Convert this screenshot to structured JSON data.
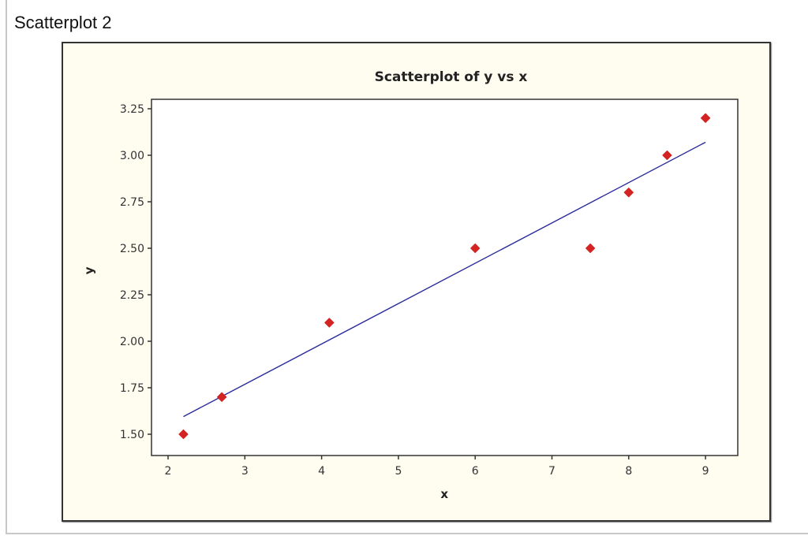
{
  "page": {
    "title": "Scatterplot 2"
  },
  "colors": {
    "frame_bg": "#fffcf0",
    "plot_bg": "#ffffff",
    "marker": "#d42323",
    "fit_line": "#2b2b9c",
    "axis": "#333333"
  },
  "chart_data": {
    "type": "scatter",
    "title": "Scatterplot of y vs x",
    "xlabel": "x",
    "ylabel": "y",
    "xlim": [
      1.8,
      9.4
    ],
    "ylim": [
      1.4,
      3.28
    ],
    "x_ticks": [
      2,
      3,
      4,
      5,
      6,
      7,
      8,
      9
    ],
    "y_ticks": [
      1.5,
      1.75,
      2.0,
      2.25,
      2.5,
      2.75,
      3.0,
      3.25
    ],
    "y_tick_labels": [
      "1.50",
      "1.75",
      "2.00",
      "2.25",
      "2.50",
      "2.75",
      "3.00",
      "3.25"
    ],
    "x_tick_labels": [
      "2",
      "3",
      "4",
      "5",
      "6",
      "7",
      "8",
      "9"
    ],
    "grid": false,
    "legend": null,
    "points": [
      {
        "x": 2.2,
        "y": 1.5
      },
      {
        "x": 2.7,
        "y": 1.7
      },
      {
        "x": 4.1,
        "y": 2.1
      },
      {
        "x": 6.0,
        "y": 2.5
      },
      {
        "x": 7.5,
        "y": 2.5
      },
      {
        "x": 8.0,
        "y": 2.8
      },
      {
        "x": 8.5,
        "y": 3.0
      },
      {
        "x": 9.0,
        "y": 3.2
      }
    ],
    "fit_line": {
      "x_start": 2.2,
      "y_start": 1.595,
      "x_end": 9.0,
      "y_end": 3.07
    }
  }
}
